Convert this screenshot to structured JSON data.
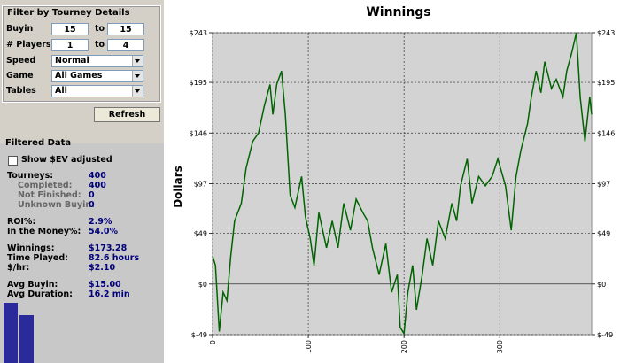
{
  "filter": {
    "title": "Filter by Tourney Details",
    "buyin": {
      "label": "Buyin",
      "from": "15",
      "to_word": "to",
      "to": "15"
    },
    "players": {
      "label": "# Players",
      "from": "1",
      "to_word": "to",
      "to": "4"
    },
    "speed": {
      "label": "Speed",
      "value": "Normal"
    },
    "game": {
      "label": "Game",
      "value": "All Games"
    },
    "tables": {
      "label": "Tables",
      "value": "All"
    },
    "button": "Refresh"
  },
  "filtered": {
    "title": "Filtered Data",
    "checkbox": "Show $EV adjusted",
    "stats": [
      {
        "label": "Tourneys:",
        "value": "400",
        "sub": false
      },
      {
        "label": "Completed:",
        "value": "400",
        "sub": true
      },
      {
        "label": "Not Finished:",
        "value": "0",
        "sub": true
      },
      {
        "label": "Unknown Buyin:",
        "value": "0",
        "sub": true
      },
      {
        "label": "ROI%:",
        "value": "2.9%",
        "sub": false,
        "gap": true
      },
      {
        "label": "In the Money%:",
        "value": "54.0%",
        "sub": false
      },
      {
        "label": "Winnings:",
        "value": "$173.28",
        "sub": false,
        "gap": true
      },
      {
        "label": "Time Played:",
        "value": "82.6 hours",
        "sub": false
      },
      {
        "label": "$/hr:",
        "value": "$2.10",
        "sub": false
      },
      {
        "label": "Avg Buyin:",
        "value": "$15.00",
        "sub": false,
        "gap": true
      },
      {
        "label": "Avg Duration:",
        "value": "16.2 min",
        "sub": false
      }
    ]
  },
  "chart_data": {
    "type": "line",
    "title": "Winnings",
    "ylabel": "Dollars",
    "x": [
      0,
      3,
      7,
      11,
      15,
      19,
      23,
      30,
      35,
      42,
      48,
      54,
      60,
      63,
      67,
      72,
      76,
      81,
      86,
      93,
      97,
      102,
      106,
      111,
      119,
      125,
      131,
      137,
      144,
      150,
      157,
      162,
      167,
      174,
      181,
      187,
      193,
      196,
      200,
      204,
      209,
      213,
      219,
      224,
      230,
      236,
      243,
      250,
      255,
      259,
      266,
      271,
      278,
      285,
      292,
      298,
      306,
      312,
      317,
      322,
      329,
      333,
      338,
      343,
      347,
      354,
      359,
      366,
      370,
      375,
      380,
      384,
      389,
      394,
      396
    ],
    "series": [
      {
        "name": "Winnings",
        "color": "#006400",
        "values": [
          27,
          18,
          -46,
          -8,
          -16,
          27,
          61,
          78,
          112,
          138,
          146,
          172,
          193,
          164,
          193,
          206,
          164,
          86,
          74,
          104,
          65,
          44,
          18,
          69,
          35,
          61,
          35,
          78,
          52,
          82,
          69,
          61,
          35,
          9,
          39,
          -8,
          9,
          -42,
          -48,
          -8,
          18,
          -25,
          9,
          44,
          18,
          61,
          44,
          78,
          61,
          95,
          121,
          78,
          104,
          95,
          104,
          121,
          95,
          52,
          104,
          129,
          155,
          181,
          206,
          185,
          215,
          189,
          198,
          181,
          206,
          223,
          243,
          181,
          138,
          181,
          164
        ]
      }
    ],
    "xlim": [
      0,
      396
    ],
    "ylim": [
      -49,
      243
    ],
    "xticks": [
      0,
      100,
      200,
      300
    ],
    "yticks": [
      {
        "value": -49,
        "label": "$-49"
      },
      {
        "value": 0,
        "label": "$0"
      },
      {
        "value": 49,
        "label": "$49"
      },
      {
        "value": 97,
        "label": "$97"
      },
      {
        "value": 146,
        "label": "$146"
      },
      {
        "value": 195,
        "label": "$195"
      },
      {
        "value": 243,
        "label": "$243"
      }
    ],
    "grid": true
  }
}
